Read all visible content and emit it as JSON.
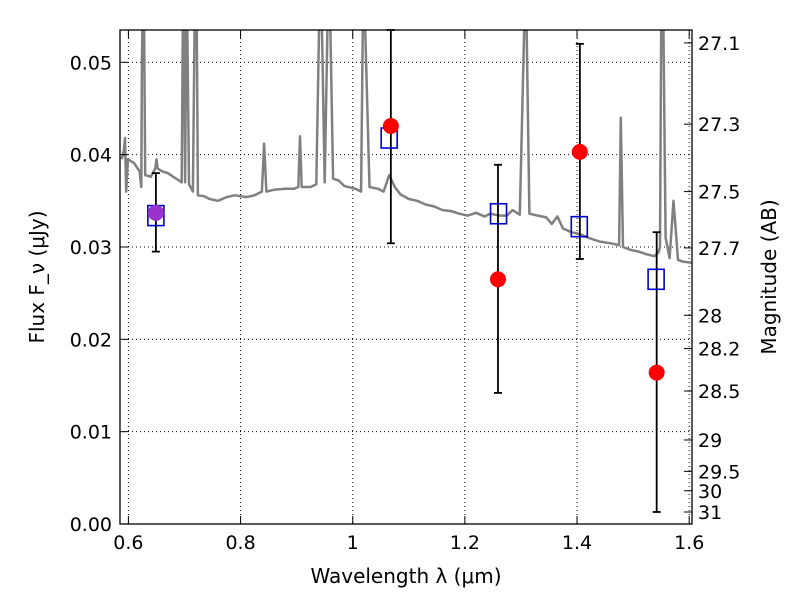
{
  "chart_data": {
    "type": "scatter",
    "xlabel": "Wavelength λ (μm)",
    "ylabel": "Flux F_ν (μJy)",
    "ylabel_right": "Magnitude (AB)",
    "xlim": [
      0.585,
      1.605
    ],
    "ylim": [
      0.0,
      0.0535
    ],
    "grid": true,
    "x_ticks": [
      {
        "value": 0.6,
        "label": "0.6"
      },
      {
        "value": 0.8,
        "label": "0.8"
      },
      {
        "value": 1.0,
        "label": "1"
      },
      {
        "value": 1.2,
        "label": "1.2"
      },
      {
        "value": 1.4,
        "label": "1.4"
      },
      {
        "value": 1.6,
        "label": "1.6"
      }
    ],
    "y_ticks": [
      {
        "value": 0.0,
        "label": "0.00"
      },
      {
        "value": 0.01,
        "label": "0.01"
      },
      {
        "value": 0.02,
        "label": "0.02"
      },
      {
        "value": 0.03,
        "label": "0.03"
      },
      {
        "value": 0.04,
        "label": "0.04"
      },
      {
        "value": 0.05,
        "label": "0.05"
      }
    ],
    "y2_ticks": [
      {
        "flux": 0.0521,
        "label": "27.1"
      },
      {
        "flux": 0.0433,
        "label": "27.3"
      },
      {
        "flux": 0.036,
        "label": "27.5"
      },
      {
        "flux": 0.0299,
        "label": "27.7"
      },
      {
        "flux": 0.0226,
        "label": "28"
      },
      {
        "flux": 0.019,
        "label": "28.2"
      },
      {
        "flux": 0.0144,
        "label": "28.5"
      },
      {
        "flux": 0.0091,
        "label": "29"
      },
      {
        "flux": 0.0057,
        "label": "29.5"
      },
      {
        "flux": 0.0036,
        "label": "30"
      },
      {
        "flux": 0.0013,
        "label": "31"
      }
    ],
    "colors": {
      "model": "#808080",
      "observed": "#ff0000",
      "model_phot": "#0000cc",
      "overlap": "#9933cc",
      "errorbar": "#000000",
      "grid": "#000000"
    },
    "observed": [
      {
        "x": 0.649,
        "y": 0.0337,
        "yerr_low": 0.0042,
        "yerr_high": 0.0043
      },
      {
        "x": 1.068,
        "y": 0.0431,
        "yerr_low": 0.0127,
        "yerr_high": 0.0104
      },
      {
        "x": 1.259,
        "y": 0.0265,
        "yerr_low": 0.0123,
        "yerr_high": 0.0124
      },
      {
        "x": 1.405,
        "y": 0.0403,
        "yerr_low": 0.0116,
        "yerr_high": 0.0117
      },
      {
        "x": 1.542,
        "y": 0.0164,
        "yerr_low": 0.0151,
        "yerr_high": 0.0152
      }
    ],
    "model_photometry": [
      {
        "x": 0.649,
        "y": 0.0334
      },
      {
        "x": 1.065,
        "y": 0.0418
      },
      {
        "x": 1.26,
        "y": 0.0336
      },
      {
        "x": 1.404,
        "y": 0.0322
      },
      {
        "x": 1.541,
        "y": 0.0265
      }
    ],
    "model_spectrum": [
      [
        0.588,
        0.0395
      ],
      [
        0.592,
        0.0405
      ],
      [
        0.594,
        0.0418
      ],
      [
        0.596,
        0.036
      ],
      [
        0.599,
        0.0395
      ],
      [
        0.61,
        0.0391
      ],
      [
        0.62,
        0.0382
      ],
      [
        0.623,
        0.0365
      ],
      [
        0.624,
        0.05
      ],
      [
        0.625,
        0.054
      ],
      [
        0.628,
        0.054
      ],
      [
        0.63,
        0.0378
      ],
      [
        0.64,
        0.0376
      ],
      [
        0.648,
        0.0385
      ],
      [
        0.65,
        0.0395
      ],
      [
        0.652,
        0.0385
      ],
      [
        0.66,
        0.0382
      ],
      [
        0.67,
        0.038
      ],
      [
        0.68,
        0.0376
      ],
      [
        0.69,
        0.0372
      ],
      [
        0.695,
        0.037
      ],
      [
        0.697,
        0.054
      ],
      [
        0.699,
        0.054
      ],
      [
        0.701,
        0.037
      ],
      [
        0.703,
        0.054
      ],
      [
        0.705,
        0.054
      ],
      [
        0.708,
        0.0368
      ],
      [
        0.715,
        0.036
      ],
      [
        0.718,
        0.054
      ],
      [
        0.722,
        0.054
      ],
      [
        0.724,
        0.0356
      ],
      [
        0.735,
        0.0355
      ],
      [
        0.745,
        0.0352
      ],
      [
        0.76,
        0.035
      ],
      [
        0.775,
        0.0354
      ],
      [
        0.79,
        0.0356
      ],
      [
        0.81,
        0.0354
      ],
      [
        0.825,
        0.0356
      ],
      [
        0.838,
        0.036
      ],
      [
        0.842,
        0.0412
      ],
      [
        0.846,
        0.036
      ],
      [
        0.86,
        0.0362
      ],
      [
        0.88,
        0.0363
      ],
      [
        0.895,
        0.0363
      ],
      [
        0.903,
        0.0365
      ],
      [
        0.906,
        0.042
      ],
      [
        0.909,
        0.0365
      ],
      [
        0.925,
        0.0365
      ],
      [
        0.935,
        0.0368
      ],
      [
        0.94,
        0.054
      ],
      [
        0.945,
        0.054
      ],
      [
        0.95,
        0.037
      ],
      [
        0.955,
        0.054
      ],
      [
        0.96,
        0.054
      ],
      [
        0.965,
        0.0374
      ],
      [
        0.975,
        0.0372
      ],
      [
        0.985,
        0.0366
      ],
      [
        1.005,
        0.0363
      ],
      [
        1.015,
        0.036
      ],
      [
        1.018,
        0.054
      ],
      [
        1.022,
        0.054
      ],
      [
        1.03,
        0.0365
      ],
      [
        1.045,
        0.0363
      ],
      [
        1.055,
        0.036
      ],
      [
        1.065,
        0.0378
      ],
      [
        1.075,
        0.0365
      ],
      [
        1.085,
        0.0357
      ],
      [
        1.1,
        0.0352
      ],
      [
        1.115,
        0.035
      ],
      [
        1.13,
        0.0346
      ],
      [
        1.145,
        0.0344
      ],
      [
        1.16,
        0.034
      ],
      [
        1.175,
        0.0339
      ],
      [
        1.19,
        0.0336
      ],
      [
        1.205,
        0.0334
      ],
      [
        1.22,
        0.0337
      ],
      [
        1.235,
        0.0333
      ],
      [
        1.245,
        0.0336
      ],
      [
        1.262,
        0.0334
      ],
      [
        1.275,
        0.0334
      ],
      [
        1.285,
        0.034
      ],
      [
        1.298,
        0.0335
      ],
      [
        1.306,
        0.054
      ],
      [
        1.31,
        0.054
      ],
      [
        1.315,
        0.0336
      ],
      [
        1.33,
        0.0334
      ],
      [
        1.345,
        0.0332
      ],
      [
        1.355,
        0.0325
      ],
      [
        1.365,
        0.0333
      ],
      [
        1.375,
        0.032
      ],
      [
        1.39,
        0.0316
      ],
      [
        1.405,
        0.0314
      ],
      [
        1.42,
        0.031
      ],
      [
        1.44,
        0.0306
      ],
      [
        1.46,
        0.0304
      ],
      [
        1.475,
        0.0302
      ],
      [
        1.478,
        0.044
      ],
      [
        1.482,
        0.03
      ],
      [
        1.495,
        0.0297
      ],
      [
        1.51,
        0.0295
      ],
      [
        1.525,
        0.0292
      ],
      [
        1.538,
        0.029
      ],
      [
        1.545,
        0.0294
      ],
      [
        1.548,
        0.03
      ],
      [
        1.55,
        0.054
      ],
      [
        1.554,
        0.054
      ],
      [
        1.558,
        0.031
      ],
      [
        1.565,
        0.0288
      ],
      [
        1.572,
        0.035
      ],
      [
        1.58,
        0.0286
      ],
      [
        1.59,
        0.0284
      ],
      [
        1.605,
        0.0283
      ]
    ]
  }
}
